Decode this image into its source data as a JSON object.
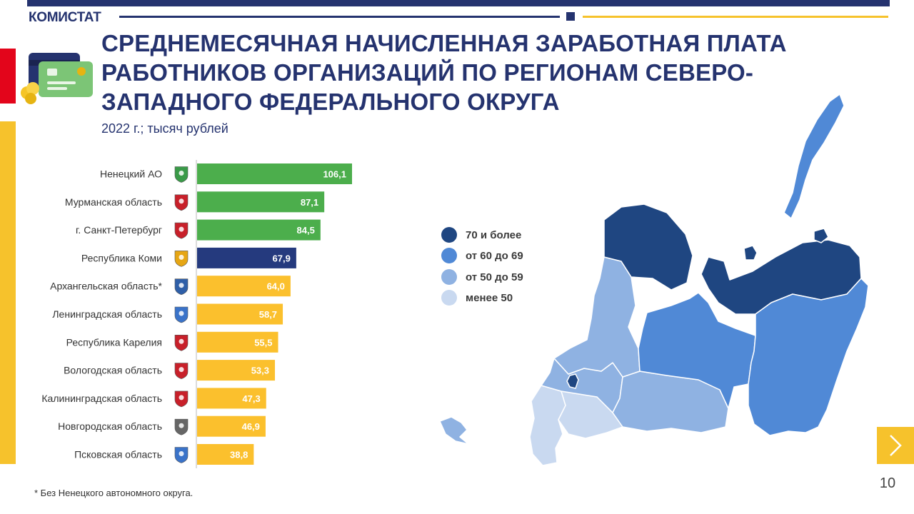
{
  "header": {
    "brand": "КОМИСТАТ",
    "title": "СРЕДНЕМЕСЯЧНАЯ НАЧИСЛЕННАЯ ЗАРАБОТНАЯ ПЛАТА РАБОТНИКОВ ОРГАНИЗАЦИЙ ПО РЕГИОНАМ СЕВЕРО-ЗАПАДНОГО ФЕДЕРАЛЬНОГО ОКРУГА",
    "subtitle": "2022 г.; тысяч рублей"
  },
  "colors": {
    "navy": "#25336f",
    "yellow": "#f6c22c",
    "red": "#e3051b",
    "bar_green": "#4cae4c",
    "bar_navy": "#253a7e",
    "bar_yellow": "#fbc02d",
    "map_70_plus": "#1f4681",
    "map_60_69": "#5089d6",
    "map_50_59": "#8fb2e2",
    "map_below_50": "#c9d9f0"
  },
  "chart_data": {
    "type": "bar",
    "orientation": "horizontal",
    "title": "",
    "xlabel": "",
    "ylabel": "",
    "xlim": [
      0,
      110
    ],
    "categories": [
      "Ненецкий АО",
      "Мурманская область",
      "г. Санкт-Петербург",
      "Республика Коми",
      "Архангельская область*",
      "Ленинградская область",
      "Республика Карелия",
      "Вологодская область",
      "Калининградская область",
      "Новгородская область",
      "Псковская область"
    ],
    "values": [
      106.1,
      87.1,
      84.5,
      67.9,
      64.0,
      58.7,
      55.5,
      53.3,
      47.3,
      46.9,
      38.8
    ],
    "value_labels": [
      "106,1",
      "87,1",
      "84,5",
      "67,9",
      "64,0",
      "58,7",
      "55,5",
      "53,3",
      "47,3",
      "46,9",
      "38,8"
    ],
    "bar_colors": [
      "#4cae4c",
      "#4cae4c",
      "#4cae4c",
      "#253a7e",
      "#fbc02d",
      "#fbc02d",
      "#fbc02d",
      "#fbc02d",
      "#fbc02d",
      "#fbc02d",
      "#fbc02d"
    ],
    "emblem_colors": [
      "#3a9a48",
      "#c8202a",
      "#c8202a",
      "#e6a614",
      "#2f5fa8",
      "#3a73c9",
      "#c8202a",
      "#c8202a",
      "#c8202a",
      "#666666",
      "#3a73c9"
    ],
    "grid": false,
    "legend": "none"
  },
  "map_legend": [
    {
      "label": "70 и более",
      "color": "#1f4681"
    },
    {
      "label": "от 60 до 69",
      "color": "#5089d6"
    },
    {
      "label": "от 50 до 59",
      "color": "#8fb2e2"
    },
    {
      "label": "менее 50",
      "color": "#c9d9f0"
    }
  ],
  "footer": {
    "footnote": "* Без Ненецкого автономного округа.",
    "page_number": "10",
    "next_icon": "chevron-right-icon"
  }
}
